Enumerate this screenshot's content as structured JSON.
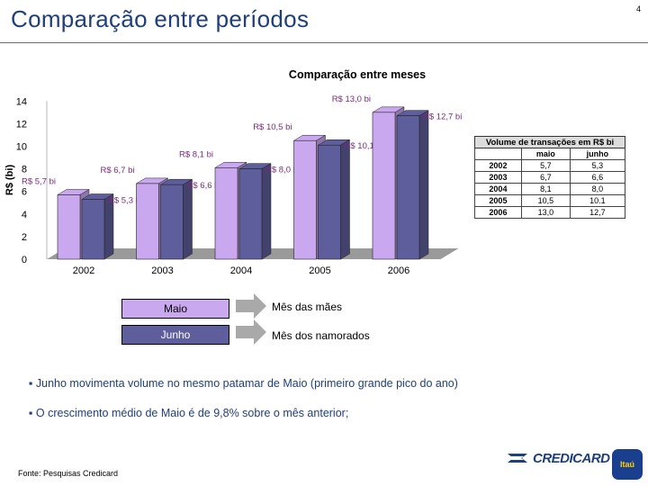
{
  "page": {
    "number": "4",
    "title": "Comparação entre períodos",
    "source": "Fonte: Pesquisas Credicard"
  },
  "chart_data": {
    "type": "bar",
    "title": "Comparação entre meses",
    "ylabel": "R$ (bi)",
    "xlabel": "",
    "ylim": [
      0,
      14
    ],
    "yticks": [
      0,
      2,
      4,
      6,
      8,
      10,
      12,
      14
    ],
    "categories": [
      "2002",
      "2003",
      "2004",
      "2005",
      "2006"
    ],
    "series": [
      {
        "name": "Maio",
        "values": [
          5.7,
          6.7,
          8.1,
          10.5,
          13.0
        ],
        "labels": [
          "R$ 5,7 bi",
          "R$ 6,7 bi",
          "R$ 8,1 bi",
          "R$ 10,5 bi",
          "R$ 13,0 bi"
        ],
        "color": "#c9a8f0"
      },
      {
        "name": "Junho",
        "values": [
          5.3,
          6.6,
          8.0,
          10.1,
          12.7
        ],
        "labels": [
          "R$ 5,3 bi",
          "R$ 6,6 bi",
          "R$ 8,0 bi",
          "R$ 10,1 bi",
          "R$ 12,7 bi"
        ],
        "color": "#5e5e9c"
      }
    ],
    "floor_color": "#9a9a9a",
    "label_color": "#7a2a7a"
  },
  "table": {
    "title": "Volume de transações em R$ bi",
    "headers": [
      "maio",
      "junho"
    ],
    "rows": [
      {
        "year": "2002",
        "maio": "5,7",
        "junho": "5,3"
      },
      {
        "year": "2003",
        "maio": "6,7",
        "junho": "6,6"
      },
      {
        "year": "2004",
        "maio": "8,1",
        "junho": "8,0"
      },
      {
        "year": "2005",
        "maio": "10,5",
        "junho": "10.1"
      },
      {
        "year": "2006",
        "maio": "13,0",
        "junho": "12,7"
      }
    ]
  },
  "legend": {
    "maio": {
      "label": "Maio",
      "desc": "Mês das mães"
    },
    "junho": {
      "label": "Junho",
      "desc": "Mês dos namorados"
    }
  },
  "bullets": [
    "▪ Junho movimenta volume no mesmo patamar de Maio (primeiro grande pico do ano)",
    "▪ O crescimento médio de Maio é de 9,8%  sobre o mês anterior;"
  ],
  "brand": {
    "name": "CREDICARD",
    "partner": "Itaú"
  }
}
